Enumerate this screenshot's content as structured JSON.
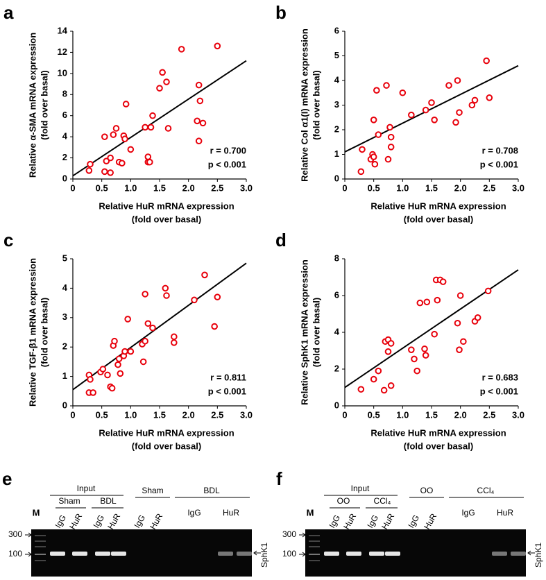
{
  "chart_data": [
    {
      "type": "scatter",
      "label": "a",
      "ylabel": [
        "Relative α-SMA mRNA expression",
        "(fold over basal)"
      ],
      "xlabel": [
        "Relative HuR mRNA expression",
        "(fold over basal)"
      ],
      "x": [
        0.28,
        0.3,
        0.55,
        0.55,
        0.58,
        0.65,
        0.65,
        0.7,
        0.75,
        0.8,
        0.85,
        0.88,
        0.9,
        0.92,
        1.0,
        1.25,
        1.3,
        1.3,
        1.33,
        1.35,
        1.38,
        1.5,
        1.55,
        1.62,
        1.65,
        1.88,
        2.15,
        2.18,
        2.18,
        2.2,
        2.25,
        2.5
      ],
      "values": [
        0.8,
        1.4,
        4.0,
        0.7,
        1.7,
        2.0,
        0.6,
        4.2,
        4.8,
        1.6,
        1.5,
        4.1,
        3.8,
        7.1,
        2.8,
        4.9,
        2.1,
        1.6,
        1.6,
        4.9,
        6.0,
        8.6,
        10.1,
        9.2,
        4.8,
        12.3,
        5.5,
        3.6,
        8.9,
        7.4,
        5.3,
        12.6
      ],
      "color": "#e8000b",
      "fit": {
        "x": [
          0,
          3
        ],
        "y": [
          0.3,
          11.2
        ]
      },
      "xlim": [
        0,
        3
      ],
      "ylim": [
        0,
        14
      ],
      "xticks": [
        0,
        0.5,
        {
          "value": 1,
          "label": "1.0"
        },
        1.5,
        {
          "value": 2,
          "label": "2.0"
        },
        2.5,
        {
          "value": 3,
          "label": "3.0"
        }
      ],
      "yticks": [
        0,
        2,
        4,
        6,
        8,
        10,
        12,
        14
      ],
      "annotations": [
        "r = 0.700",
        "p < 0.001"
      ]
    },
    {
      "type": "scatter",
      "label": "b",
      "ylabel": [
        "Relative Col α1(I) mRNA expression",
        "(fold over basal)"
      ],
      "xlabel": [
        "Relative HuR mRNA expression",
        "(fold over basal)"
      ],
      "x": [
        0.28,
        0.3,
        0.45,
        0.48,
        0.5,
        0.5,
        0.52,
        0.55,
        0.58,
        0.72,
        0.75,
        0.78,
        0.8,
        0.8,
        1.0,
        1.15,
        1.4,
        1.5,
        1.55,
        1.8,
        1.92,
        1.95,
        1.98,
        2.2,
        2.25,
        2.45,
        2.5
      ],
      "values": [
        0.3,
        1.2,
        0.8,
        1.0,
        0.9,
        2.4,
        0.6,
        3.6,
        1.8,
        3.8,
        0.8,
        2.1,
        1.3,
        1.7,
        3.5,
        2.6,
        2.8,
        3.1,
        2.4,
        3.8,
        2.3,
        4.0,
        2.7,
        3.0,
        3.2,
        4.8,
        3.3
      ],
      "color": "#e8000b",
      "fit": {
        "x": [
          0,
          3
        ],
        "y": [
          1.1,
          4.6
        ]
      },
      "xlim": [
        0,
        3
      ],
      "ylim": [
        0,
        6
      ],
      "xticks": [
        0,
        0.5,
        {
          "value": 1,
          "label": "1.0"
        },
        1.5,
        {
          "value": 2,
          "label": "2.0"
        },
        2.5,
        {
          "value": 3,
          "label": "3.0"
        }
      ],
      "yticks": [
        0,
        1,
        2,
        3,
        4,
        5,
        6
      ],
      "annotations": [
        "r = 0.708",
        "p < 0.001"
      ]
    },
    {
      "type": "scatter",
      "label": "c",
      "ylabel": [
        "Relative TGF-β1 mRNA expression",
        "(fold over basal)"
      ],
      "xlabel": [
        "Relative HuR mRNA expression",
        "(fold over basal)"
      ],
      "x": [
        0.28,
        0.28,
        0.3,
        0.35,
        0.48,
        0.52,
        0.6,
        0.65,
        0.68,
        0.7,
        0.72,
        0.78,
        0.8,
        0.82,
        0.88,
        0.9,
        0.95,
        1.0,
        1.2,
        1.22,
        1.25,
        1.25,
        1.3,
        1.38,
        1.6,
        1.62,
        1.75,
        1.75,
        2.1,
        2.28,
        2.45,
        2.5
      ],
      "values": [
        1.05,
        0.45,
        0.9,
        0.45,
        1.15,
        1.25,
        1.05,
        0.65,
        0.6,
        2.05,
        2.2,
        1.4,
        1.6,
        1.1,
        1.7,
        1.85,
        2.95,
        1.85,
        2.1,
        1.5,
        3.8,
        2.2,
        2.8,
        2.65,
        4.0,
        3.75,
        2.35,
        2.15,
        3.6,
        4.45,
        2.7,
        3.7
      ],
      "color": "#e8000b",
      "fit": {
        "x": [
          0,
          3
        ],
        "y": [
          0.55,
          4.85
        ]
      },
      "xlim": [
        0,
        3
      ],
      "ylim": [
        0,
        5
      ],
      "xticks": [
        0,
        0.5,
        {
          "value": 1,
          "label": "1.0"
        },
        1.5,
        {
          "value": 2,
          "label": "2.0"
        },
        2.5,
        {
          "value": 3,
          "label": "3.0"
        }
      ],
      "yticks": [
        0,
        1,
        2,
        3,
        4,
        5
      ],
      "annotations": [
        "r = 0.811",
        "p < 0.001"
      ]
    },
    {
      "type": "scatter",
      "label": "d",
      "ylabel": [
        "Relative SphK1 mRNA expression",
        "(fold over basal)"
      ],
      "xlabel": [
        "Relative HuR mRNA expression",
        "(fold over basal)"
      ],
      "x": [
        0.28,
        0.5,
        0.58,
        0.68,
        0.7,
        0.75,
        0.75,
        0.8,
        0.8,
        1.15,
        1.2,
        1.25,
        1.3,
        1.38,
        1.4,
        1.42,
        1.55,
        1.58,
        1.6,
        1.65,
        1.7,
        1.95,
        1.98,
        2.0,
        2.05,
        2.25,
        2.3,
        2.48
      ],
      "values": [
        0.9,
        1.45,
        1.9,
        0.85,
        3.5,
        3.6,
        2.95,
        3.4,
        1.1,
        3.05,
        2.55,
        1.9,
        5.6,
        3.1,
        2.75,
        5.65,
        3.9,
        6.85,
        5.75,
        6.85,
        6.75,
        4.5,
        3.05,
        6.0,
        3.5,
        4.6,
        4.8,
        6.25
      ],
      "color": "#e8000b",
      "fit": {
        "x": [
          0,
          3
        ],
        "y": [
          1.0,
          7.4
        ]
      },
      "xlim": [
        0,
        3
      ],
      "ylim": [
        0,
        8
      ],
      "xticks": [
        0,
        0.5,
        {
          "value": 1,
          "label": "1.0"
        },
        1.5,
        {
          "value": 2,
          "label": "2.0"
        },
        2.5,
        {
          "value": 3,
          "label": "3.0"
        }
      ],
      "yticks": [
        0,
        2,
        4,
        6,
        8
      ],
      "annotations": [
        "r = 0.683",
        "p < 0.001"
      ]
    }
  ],
  "gels": [
    {
      "label": "e",
      "marker": "M",
      "sizes": [
        "300",
        "100"
      ],
      "target": "SphK1",
      "input": "Input",
      "input_groups": [
        "Sham",
        "BDL"
      ],
      "ip_groups": [
        "Sham",
        "BDL"
      ],
      "lanes": [
        "IgG",
        "HuR"
      ]
    },
    {
      "label": "f",
      "marker": "M",
      "sizes": [
        "300",
        "100"
      ],
      "target": "SphK1",
      "input": "Input",
      "input_groups": [
        "OO",
        "CCl₄"
      ],
      "ip_groups": [
        "OO",
        "CCl₄"
      ],
      "lanes": [
        "IgG",
        "HuR"
      ]
    }
  ]
}
